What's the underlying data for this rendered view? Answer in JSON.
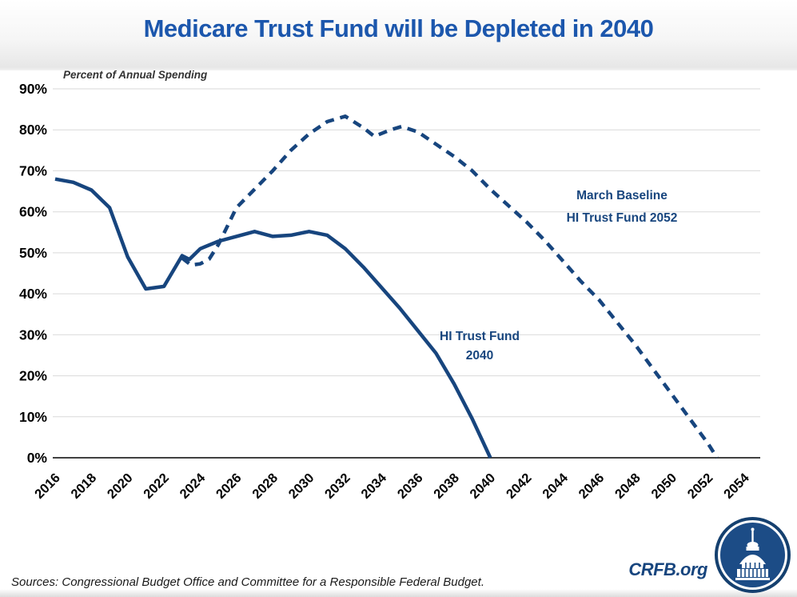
{
  "title": "Medicare Trust Fund will be Depleted in 2040",
  "axis_note": "Percent of Annual Spending",
  "footer": {
    "sources": "Sources: Congressional Budget Office and Committee for a Responsible Federal Budget.",
    "brand": "CRFB.org"
  },
  "colors": {
    "title_blue": "#1c57ad",
    "line_navy": "#17457e",
    "grid_gray": "#d9d9d9",
    "axis_dark": "#262626",
    "tick_black": "#000000",
    "logo_navy": "#1c4c86"
  },
  "chart_data": {
    "type": "line",
    "title": "Medicare Trust Fund will be Depleted in 2040",
    "subtitle": "Percent of Annual Spending",
    "xlabel": "",
    "ylabel": "Percent of Annual Spending",
    "xlim": [
      2016,
      2054.9
    ],
    "ylim": [
      0,
      90
    ],
    "grid": true,
    "legend_position": "inline-annotations",
    "x_ticks": [
      "2016",
      "2018",
      "2020",
      "2022",
      "2024",
      "2026",
      "2028",
      "2030",
      "2032",
      "2034",
      "2036",
      "2038",
      "2040",
      "2042",
      "2044",
      "2046",
      "2048",
      "2050",
      "2052",
      "2054"
    ],
    "y_ticks": [
      {
        "value": 0,
        "label": "0%"
      },
      {
        "value": 10,
        "label": "10%"
      },
      {
        "value": 20,
        "label": "20%"
      },
      {
        "value": 30,
        "label": "30%"
      },
      {
        "value": 40,
        "label": "40%"
      },
      {
        "value": 50,
        "label": "50%"
      },
      {
        "value": 60,
        "label": "60%"
      },
      {
        "value": 70,
        "label": "70%"
      },
      {
        "value": 80,
        "label": "80%"
      },
      {
        "value": 90,
        "label": "90%"
      }
    ],
    "series": [
      {
        "id": "hi-trust-fund-2040-line",
        "name": "HI Trust Fund 2040",
        "style": "solid",
        "label_lines": [
          "HI Trust Fund",
          "2040"
        ],
        "points": [
          [
            2016,
            68
          ],
          [
            2017,
            67.2
          ],
          [
            2018,
            65.3
          ],
          [
            2019,
            61
          ],
          [
            2020,
            49
          ],
          [
            2021,
            41.2
          ],
          [
            2022,
            41.8
          ],
          [
            2023,
            49.3
          ],
          [
            2023.4,
            48.4
          ],
          [
            2024,
            51
          ],
          [
            2025,
            52.8
          ],
          [
            2026,
            54
          ],
          [
            2027,
            55.2
          ],
          [
            2028,
            54
          ],
          [
            2029,
            54.3
          ],
          [
            2030,
            55.2
          ],
          [
            2031,
            54.3
          ],
          [
            2032,
            51
          ],
          [
            2033,
            46.5
          ],
          [
            2034,
            41.5
          ],
          [
            2035,
            36.5
          ],
          [
            2036,
            31
          ],
          [
            2037,
            25.5
          ],
          [
            2038,
            18
          ],
          [
            2039,
            9.5
          ],
          [
            2040,
            0
          ]
        ]
      },
      {
        "id": "march-baseline-2052-line",
        "name": "March Baseline HI Trust Fund 2052",
        "style": "dashed",
        "label_lines": [
          "March Baseline",
          "HI Trust Fund 2052"
        ],
        "points": [
          [
            2023,
            48.7
          ],
          [
            2023.5,
            47
          ],
          [
            2024,
            47.3
          ],
          [
            2024.5,
            48.5
          ],
          [
            2025,
            52
          ],
          [
            2026,
            61
          ],
          [
            2027,
            65.5
          ],
          [
            2028,
            70
          ],
          [
            2029,
            75
          ],
          [
            2030,
            79
          ],
          [
            2031,
            82
          ],
          [
            2032,
            83.3
          ],
          [
            2033,
            80.5
          ],
          [
            2033.6,
            78.4
          ],
          [
            2034.5,
            80
          ],
          [
            2035.1,
            80.8
          ],
          [
            2036,
            79.5
          ],
          [
            2037,
            76.5
          ],
          [
            2038,
            73.5
          ],
          [
            2039,
            70
          ],
          [
            2040,
            65.5
          ],
          [
            2041,
            61.5
          ],
          [
            2042,
            57.5
          ],
          [
            2043,
            53
          ],
          [
            2044,
            48
          ],
          [
            2045,
            43
          ],
          [
            2046,
            38.5
          ],
          [
            2047,
            33
          ],
          [
            2048,
            27.5
          ],
          [
            2049,
            21.5
          ],
          [
            2050,
            15.5
          ],
          [
            2051,
            9.5
          ],
          [
            2052,
            3.5
          ],
          [
            2052.5,
            0
          ]
        ]
      }
    ]
  }
}
